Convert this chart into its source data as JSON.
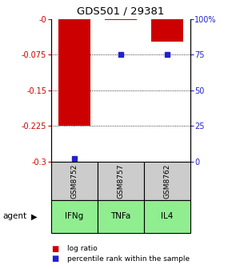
{
  "title": "GDS501 / 29381",
  "samples": [
    "GSM8752",
    "GSM8757",
    "GSM8762"
  ],
  "agents": [
    "IFNg",
    "TNFa",
    "IL4"
  ],
  "log_ratios": [
    -0.225,
    -0.002,
    -0.048
  ],
  "percentile_ranks": [
    2,
    75,
    75
  ],
  "ylim_left": [
    -0.3,
    0.0
  ],
  "ylim_right": [
    0,
    100
  ],
  "yticks_left": [
    0.0,
    -0.075,
    -0.15,
    -0.225,
    -0.3
  ],
  "yticks_right": [
    100,
    75,
    50,
    25,
    0
  ],
  "ytick_labels_left": [
    "-0",
    "-0.075",
    "-0.15",
    "-0.225",
    "-0.3"
  ],
  "ytick_labels_right": [
    "100%",
    "75",
    "50",
    "25",
    "0"
  ],
  "bar_color": "#cc0000",
  "dot_color": "#2222cc",
  "sample_bg_color": "#cccccc",
  "agent_bg_color": "#90ee90",
  "left_axis_color": "#cc0000",
  "right_axis_color": "#2222cc",
  "bar_width": 0.7,
  "background_color": "#ffffff",
  "fig_width": 2.9,
  "fig_height": 3.36,
  "dpi": 100
}
